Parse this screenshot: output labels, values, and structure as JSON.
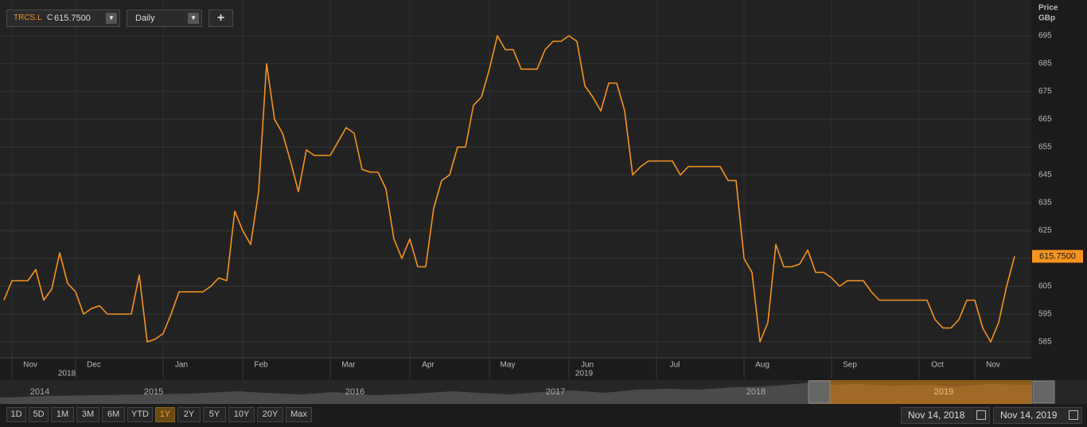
{
  "chart_data": {
    "type": "line",
    "toolbar": {
      "symbol": "TRCS.L",
      "close_prefix": "C",
      "interval": "Daily",
      "add": "+"
    },
    "y_axis_label": [
      "Price",
      "GBp"
    ],
    "categories": [
      null,
      null,
      null,
      "Nov",
      null,
      null,
      null,
      null,
      null,
      null,
      null,
      "Dec",
      null,
      null,
      null,
      null,
      null,
      null,
      null,
      null,
      null,
      null,
      "Jan",
      null,
      null,
      null,
      null,
      null,
      null,
      null,
      null,
      null,
      "Feb",
      null,
      null,
      null,
      null,
      null,
      null,
      null,
      null,
      null,
      null,
      "Mar",
      null,
      null,
      null,
      null,
      null,
      null,
      null,
      null,
      null,
      "Apr",
      null,
      null,
      null,
      null,
      null,
      null,
      null,
      null,
      null,
      "May",
      null,
      null,
      null,
      null,
      null,
      null,
      null,
      null,
      null,
      "Jun",
      null,
      null,
      null,
      null,
      null,
      null,
      null,
      null,
      null,
      null,
      "Jul",
      null,
      null,
      null,
      null,
      null,
      null,
      null,
      null,
      null,
      null,
      "Aug",
      null,
      null,
      null,
      null,
      null,
      null,
      null,
      null,
      null,
      null,
      "Sep",
      null,
      null,
      null,
      null,
      null,
      null,
      null,
      null,
      null,
      null,
      "Oct",
      null,
      null,
      null,
      null,
      null,
      null,
      "Nov",
      null,
      null,
      null
    ],
    "x_years": [
      {
        "label": "2018",
        "at": 7
      },
      {
        "label": "2019",
        "at": 72
      }
    ],
    "series": [
      {
        "name": "TRCS.L",
        "color": "#f7931e",
        "values": [
          600,
          607,
          607,
          607,
          611,
          600,
          604,
          617,
          606,
          603,
          595,
          597,
          598,
          595,
          595,
          595,
          595,
          609,
          585,
          586,
          588,
          595,
          603,
          603,
          603,
          603,
          605,
          608,
          607,
          632,
          625,
          620,
          639,
          685,
          665,
          660,
          650,
          639,
          654,
          652,
          652,
          652,
          657,
          662,
          660,
          647,
          646,
          646,
          640,
          622,
          615,
          622,
          612,
          612,
          633,
          643,
          645,
          655,
          655,
          670,
          673,
          683,
          695,
          690,
          690,
          683,
          683,
          683,
          690,
          693,
          693,
          695,
          693,
          677,
          673,
          668,
          678,
          678,
          668,
          645,
          648,
          650,
          650,
          650,
          650,
          645,
          648,
          648,
          648,
          648,
          648,
          643,
          643,
          615,
          610,
          585,
          592,
          620,
          612,
          612,
          613,
          618,
          610,
          610,
          608,
          605,
          607,
          607,
          607,
          603,
          600,
          600,
          600,
          600,
          600,
          600,
          600,
          593,
          590,
          590,
          593,
          600,
          600,
          590,
          585,
          592,
          605,
          615.75
        ]
      }
    ],
    "last_price": {
      "value": 615.75,
      "label": "615.7500"
    },
    "ylim": [
      579,
      706
    ],
    "yticks": [
      585,
      595,
      605,
      615,
      625,
      635,
      645,
      655,
      665,
      675,
      685,
      695
    ],
    "grid": true,
    "navigator_years": [
      "2014",
      "2015",
      "2016",
      "2017",
      "2018",
      "2019"
    ],
    "ranges": [
      "1D",
      "5D",
      "1M",
      "3M",
      "6M",
      "YTD",
      "1Y",
      "2Y",
      "5Y",
      "10Y",
      "20Y",
      "Max"
    ],
    "active_range": 6,
    "date_from": "Nov 14, 2018",
    "date_to": "Nov 14, 2019"
  }
}
